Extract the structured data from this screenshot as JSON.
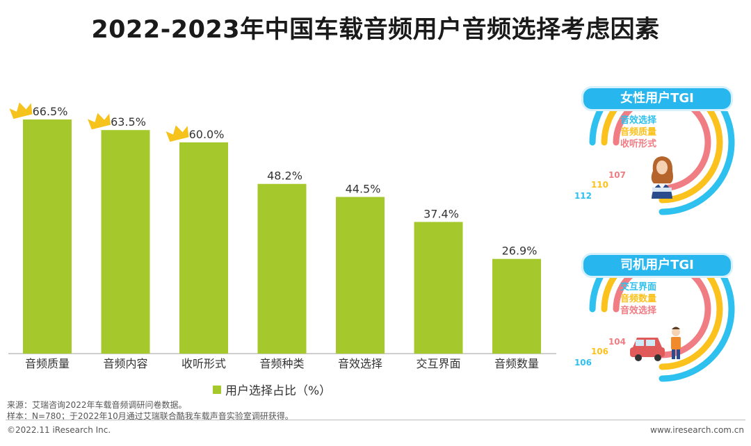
{
  "title": "2022-2023年中国车载音频用户音频选择考虑因素",
  "chart_data": {
    "type": "bar",
    "categories": [
      "音频质量",
      "音频内容",
      "收听形式",
      "音频种类",
      "音效选择",
      "交互界面",
      "音频数量"
    ],
    "values": [
      66.5,
      63.5,
      60.0,
      48.2,
      44.5,
      37.4,
      26.9
    ],
    "value_labels": [
      "66.5%",
      "63.5%",
      "60.0%",
      "48.2%",
      "44.5%",
      "37.4%",
      "26.9%"
    ],
    "crowned_count": 3,
    "legend": "用户选择占比（%）",
    "bar_color": "#a5c92d",
    "crown_color": "#f6c21c",
    "ylim": [
      0,
      66.5
    ]
  },
  "tgi": [
    {
      "header": "女性用户TGI",
      "rings": [
        {
          "label": "音效选择",
          "value": "112",
          "color": "#2ec0ee"
        },
        {
          "label": "音频质量",
          "value": "110",
          "color": "#fbc21e"
        },
        {
          "label": "收听形式",
          "value": "107",
          "color": "#f07d84"
        }
      ],
      "figure_icon": "woman-reading-icon"
    },
    {
      "header": "司机用户TGI",
      "rings": [
        {
          "label": "交互界面",
          "value": "106",
          "color": "#2ec0ee"
        },
        {
          "label": "音频数量",
          "value": "106",
          "color": "#fbc21e"
        },
        {
          "label": "音效选择",
          "value": "104",
          "color": "#f07d84"
        }
      ],
      "figure_icon": "driver-with-car-icon"
    }
  ],
  "footnotes": {
    "source": "来源：艾瑞咨询2022年车载音频调研问卷数据。",
    "sample": "样本：N=780；于2022年10月通过艾瑞联合酷我车载声音实验室调研获得。",
    "copyright": "©2022.11 iResearch Inc.",
    "website": "www.iresearch.com.cn"
  }
}
